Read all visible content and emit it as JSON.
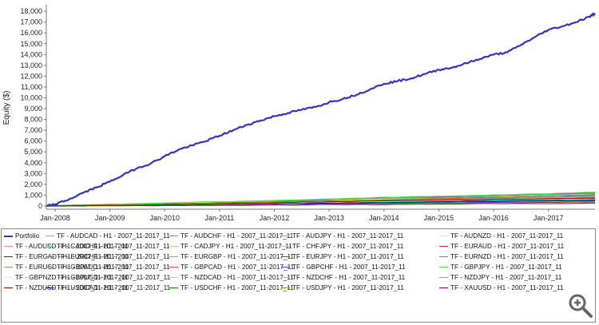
{
  "chart_data": {
    "type": "line",
    "title": "",
    "xlabel": "",
    "ylabel": "Equity ($)",
    "x_ticks": [
      "Jan-2008",
      "Jan-2009",
      "Jan-2010",
      "Jan-2011",
      "Jan-2012",
      "Jan-2013",
      "Jan-2014",
      "Jan-2015",
      "Jan-2016",
      "Jan-2017"
    ],
    "y_ticks": [
      0,
      1000,
      2000,
      3000,
      4000,
      5000,
      6000,
      7000,
      8000,
      9000,
      10000,
      11000,
      12000,
      13000,
      14000,
      15000,
      16000,
      17000,
      18000
    ],
    "y_tick_labels": [
      "0",
      "1,000",
      "2,000",
      "3,000",
      "4,000",
      "5,000",
      "6,000",
      "7,000",
      "8,000",
      "9,000",
      "10,000",
      "11,000",
      "12,000",
      "13,000",
      "14,000",
      "15,000",
      "16,000",
      "17,000",
      "18,000"
    ],
    "ylim": [
      -300,
      18600
    ],
    "xlim": [
      2007.84,
      2017.85
    ],
    "grid": false,
    "legend_position": "bottom",
    "portfolio": {
      "name": "Portfolio",
      "color": "#3333cc",
      "x": [
        2007.84,
        2008.0,
        2008.25,
        2008.5,
        2008.75,
        2009.0,
        2009.25,
        2009.5,
        2009.75,
        2010.0,
        2010.25,
        2010.5,
        2010.75,
        2011.0,
        2011.25,
        2011.5,
        2011.75,
        2012.0,
        2012.25,
        2012.5,
        2012.75,
        2013.0,
        2013.25,
        2013.5,
        2013.75,
        2014.0,
        2014.25,
        2014.5,
        2014.75,
        2015.0,
        2015.25,
        2015.5,
        2015.75,
        2016.0,
        2016.25,
        2016.5,
        2016.75,
        2017.0,
        2017.25,
        2017.5,
        2017.75,
        2017.85
      ],
      "y": [
        0,
        150,
        600,
        1200,
        1700,
        2250,
        2900,
        3500,
        3950,
        4600,
        5200,
        5600,
        6000,
        6500,
        7000,
        7500,
        7900,
        8300,
        8600,
        8900,
        9150,
        9600,
        9900,
        10300,
        10800,
        11300,
        11550,
        11800,
        12200,
        12600,
        12800,
        13200,
        13600,
        14000,
        14200,
        14900,
        15600,
        16300,
        16600,
        17000,
        17500,
        17800
      ]
    },
    "series": [
      {
        "name": "TF - AUDCAD - H1 - 2007_11-2017_11",
        "color": "#ff7777",
        "final": 950
      },
      {
        "name": "TF - AUDCHF - H1 - 2007_11-2017_11",
        "color": "#7777ff",
        "final": 700
      },
      {
        "name": "TF - AUDJPY - H1 - 2007_11-2017_11",
        "color": "#66cc66",
        "final": 850
      },
      {
        "name": "TF - AUDNZD - H1 - 2007_11-2017_11",
        "color": "#eeee55",
        "final": 300
      },
      {
        "name": "TF - AUDUSD - H1 - 2007_11-2017_11",
        "color": "#ff77ff",
        "final": 600
      },
      {
        "name": "TF - CADCHF - H1 - 2007_11-2017_11",
        "color": "#66dddd",
        "final": 1100
      },
      {
        "name": "TF - CADJPY - H1 - 2007_11-2017_11",
        "color": "#ffbb99",
        "final": 900
      },
      {
        "name": "TF - CHFJPY - H1 - 2007_11-2017_11",
        "color": "#bbbbbb",
        "final": 800
      },
      {
        "name": "TF - EURAUD - H1 - 2007_11-2017_11",
        "color": "#cc2222",
        "final": 1000
      },
      {
        "name": "TF - EURCAD - H1 - 2007_11-2017_11",
        "color": "#2222aa",
        "final": 750
      },
      {
        "name": "TF - EURCHF - H1 - 2007_11-2017_11",
        "color": "#22aa22",
        "final": 550
      },
      {
        "name": "TF - EURGBP - H1 - 2007_11-2017_11",
        "color": "#aaaa22",
        "final": 450
      },
      {
        "name": "TF - EURJPY - H1 - 2007_11-2017_11",
        "color": "#aa22aa",
        "final": 1200
      },
      {
        "name": "TF - EURNZD - H1 - 2007_11-2017_11",
        "color": "#22aaaa",
        "final": 1050
      },
      {
        "name": "TF - EURUSD - H1 - 2007_11-2017_11",
        "color": "#cc8866",
        "final": 650
      },
      {
        "name": "TF - GBPAUD - H1 - 2007_11-2017_11",
        "color": "#888888",
        "final": 1150
      },
      {
        "name": "TF - GBPCAD - H1 - 2007_11-2017_11",
        "color": "#ff4444",
        "final": 900
      },
      {
        "name": "TF - GBPCHF - H1 - 2007_11-2017_11",
        "color": "#4444ff",
        "final": 500
      },
      {
        "name": "TF - GBPJPY - H1 - 2007_11-2017_11",
        "color": "#44ee44",
        "final": 1250
      },
      {
        "name": "TF - GBPNZD - H1 - 2007_11-2017_11",
        "color": "#ffff33",
        "final": 1000
      },
      {
        "name": "TF - GBPUSD - H1 - 2007_11-2017_11",
        "color": "#ff99ff",
        "final": 700
      },
      {
        "name": "TF - NZDCAD - H1 - 2007_11-2017_11",
        "color": "#33ffff",
        "final": 600
      },
      {
        "name": "TF - NZDCHF - H1 - 2007_11-2017_11",
        "color": "#ff9966",
        "final": 400
      },
      {
        "name": "TF - NZDJPY - H1 - 2007_11-2017_11",
        "color": "#999999",
        "final": 850
      },
      {
        "name": "TF - NZDUSD - H1 - 2007_11-2017_11",
        "color": "#aa0000",
        "final": 750
      },
      {
        "name": "TF - USDCAD - H1 - 2007_11-2017_11",
        "color": "#000088",
        "final": 550
      },
      {
        "name": "TF - USDCHF - H1 - 2007_11-2017_11",
        "color": "#008800",
        "final": 350
      },
      {
        "name": "TF - USDJPY - H1 - 2007_11-2017_11",
        "color": "#888800",
        "final": 950
      },
      {
        "name": "TF - XAUUSD - H1 - 2007_11-2017_11",
        "color": "#880088",
        "final": 250
      }
    ]
  },
  "zoom_icon": "zoom-in-icon"
}
